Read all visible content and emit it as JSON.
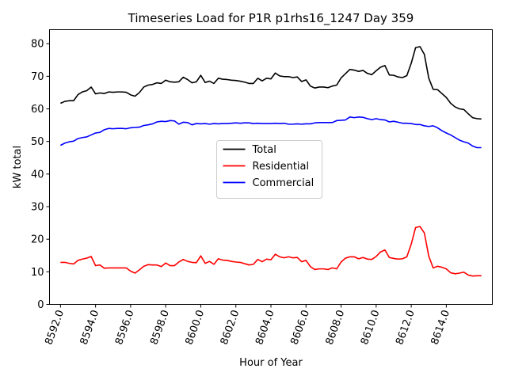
{
  "chart_data": {
    "type": "line",
    "title": "Timeseries Load for P1R p1rhs16_1247  Day 359",
    "xlabel": "Hour of Year",
    "ylabel": "kW total",
    "xlim": [
      8591.375,
      8616.625
    ],
    "ylim": [
      0,
      84.3
    ],
    "xticks": [
      8592,
      8594,
      8596,
      8598,
      8600,
      8602,
      8604,
      8606,
      8608,
      8610,
      8612,
      8614
    ],
    "xtick_labels": [
      "8592.0",
      "8594.0",
      "8596.0",
      "8598.0",
      "8600.0",
      "8602.0",
      "8604.0",
      "8606.0",
      "8608.0",
      "8610.0",
      "8612.0",
      "8614.0"
    ],
    "yticks": [
      0,
      10,
      20,
      30,
      40,
      50,
      60,
      70,
      80
    ],
    "ytick_labels": [
      "0",
      "10",
      "20",
      "30",
      "40",
      "50",
      "60",
      "70",
      "80"
    ],
    "grid": false,
    "legend_position": "center",
    "x_start": 8592,
    "x_step": 0.25,
    "series": [
      {
        "name": "Total",
        "color": "#000000",
        "values": [
          61.7,
          62.3,
          62.5,
          62.5,
          64.4,
          65.2,
          65.6,
          66.7,
          64.6,
          64.9,
          64.7,
          65.2,
          65.1,
          65.2,
          65.2,
          65.1,
          64.3,
          63.9,
          65.0,
          66.7,
          67.3,
          67.5,
          68.0,
          67.8,
          68.8,
          68.3,
          68.2,
          68.3,
          69.7,
          69.0,
          68.0,
          68.3,
          70.3,
          68.1,
          68.5,
          67.8,
          69.4,
          69.1,
          69.0,
          68.8,
          68.7,
          68.5,
          68.2,
          67.8,
          67.8,
          69.4,
          68.6,
          69.4,
          69.2,
          71.0,
          70.1,
          69.9,
          69.9,
          69.6,
          69.8,
          68.4,
          68.9,
          67.0,
          66.4,
          66.7,
          66.7,
          66.5,
          67.0,
          67.3,
          69.5,
          70.8,
          72.1,
          71.9,
          71.5,
          71.8,
          70.9,
          70.5,
          71.7,
          72.8,
          73.3,
          70.4,
          70.3,
          69.8,
          69.6,
          70.2,
          74.0,
          78.8,
          79.1,
          76.7,
          69.4,
          66.0,
          65.9,
          64.7,
          63.5,
          61.7,
          60.6,
          60.0,
          59.8,
          58.5,
          57.3,
          57.0,
          56.9
        ]
      },
      {
        "name": "Residential",
        "color": "#ff0000",
        "values": [
          12.9,
          12.9,
          12.6,
          12.4,
          13.5,
          13.9,
          14.2,
          14.7,
          11.9,
          12.1,
          11.1,
          11.2,
          11.2,
          11.2,
          11.2,
          11.2,
          10.2,
          9.6,
          10.6,
          11.7,
          12.2,
          12.1,
          12.1,
          11.6,
          12.7,
          11.9,
          11.9,
          13.0,
          13.8,
          13.2,
          12.9,
          12.8,
          14.9,
          12.6,
          13.2,
          12.3,
          14.0,
          13.6,
          13.5,
          13.2,
          13.0,
          12.9,
          12.5,
          12.1,
          12.3,
          13.8,
          13.1,
          13.9,
          13.7,
          15.4,
          14.6,
          14.3,
          14.6,
          14.3,
          14.4,
          13.1,
          13.5,
          11.6,
          10.7,
          10.9,
          10.9,
          10.7,
          11.2,
          10.9,
          13.0,
          14.2,
          14.6,
          14.6,
          14.0,
          14.4,
          13.9,
          13.8,
          14.7,
          16.1,
          16.7,
          14.4,
          14.1,
          13.9,
          14.0,
          14.6,
          18.5,
          23.6,
          23.9,
          21.9,
          14.8,
          11.2,
          11.7,
          11.4,
          10.9,
          9.7,
          9.4,
          9.6,
          9.9,
          9.0,
          8.7,
          8.8,
          8.8
        ]
      },
      {
        "name": "Commercial",
        "color": "#0000ff",
        "values": [
          48.8,
          49.5,
          49.9,
          50.1,
          50.9,
          51.2,
          51.4,
          52.0,
          52.6,
          52.8,
          53.6,
          54.0,
          53.9,
          54.0,
          54.0,
          53.9,
          54.2,
          54.3,
          54.4,
          54.9,
          55.1,
          55.4,
          56.0,
          56.2,
          56.1,
          56.4,
          56.3,
          55.3,
          55.9,
          55.8,
          55.1,
          55.5,
          55.4,
          55.5,
          55.3,
          55.5,
          55.4,
          55.5,
          55.5,
          55.6,
          55.7,
          55.6,
          55.7,
          55.7,
          55.5,
          55.6,
          55.5,
          55.5,
          55.5,
          55.6,
          55.5,
          55.6,
          55.3,
          55.3,
          55.4,
          55.3,
          55.4,
          55.4,
          55.7,
          55.8,
          55.8,
          55.8,
          55.8,
          56.4,
          56.5,
          56.6,
          57.5,
          57.3,
          57.5,
          57.4,
          57.0,
          56.7,
          57.0,
          56.7,
          56.6,
          56.0,
          56.2,
          55.9,
          55.6,
          55.6,
          55.5,
          55.2,
          55.2,
          54.8,
          54.6,
          54.8,
          54.2,
          53.3,
          52.6,
          52.0,
          51.2,
          50.4,
          49.9,
          49.5,
          48.6,
          48.1,
          48.1
        ]
      }
    ]
  }
}
